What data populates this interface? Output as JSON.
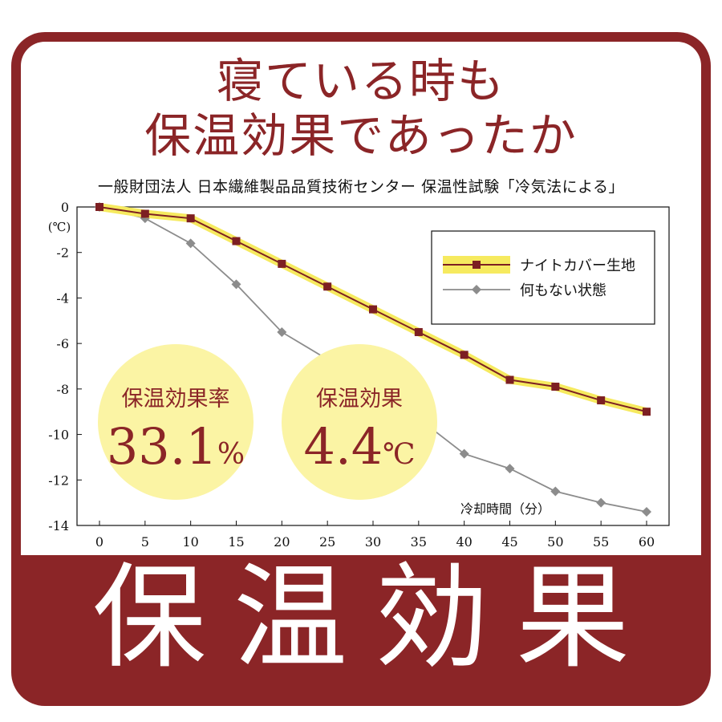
{
  "heading": {
    "line1": "寝ている時も",
    "line2": "保温効果であったか",
    "subtitle": "一般財団法人  日本繊維製品品質技術センター  保温性試験「冷気法による」"
  },
  "badges": [
    {
      "label": "保温効果率",
      "value": "33.1",
      "unit": "%"
    },
    {
      "label": "保温効果",
      "value": "4.4",
      "unit": "℃"
    }
  ],
  "footer": {
    "text": "保温効果"
  },
  "colors": {
    "brand": "#8b2527",
    "badge_fill": "#fbf4a4",
    "series1": "#7d1f22",
    "series1_glow": "#f6ea5f",
    "series2": "#8c8c8c"
  },
  "chart_data": {
    "type": "line",
    "ylabel": "(℃)",
    "xlabel": "冷却時間（分）",
    "x": [
      0,
      5,
      10,
      15,
      20,
      25,
      30,
      35,
      40,
      45,
      50,
      55,
      60
    ],
    "xlim": [
      0,
      60
    ],
    "ylim": [
      -14,
      0
    ],
    "yticks": [
      0,
      -2,
      -4,
      -6,
      -8,
      -10,
      -12,
      -14
    ],
    "grid": false,
    "legend": "top-right",
    "series": [
      {
        "name": "ナイトカバー生地",
        "marker": "square",
        "values": [
          0,
          -0.3,
          -0.5,
          -1.5,
          -2.5,
          -3.5,
          -4.5,
          -5.5,
          -6.5,
          -7.6,
          -7.9,
          -8.5,
          -9.0
        ]
      },
      {
        "name": "何もない状態",
        "marker": "diamond",
        "values": [
          0,
          -0.5,
          -1.6,
          -3.4,
          -5.5,
          -6.7,
          -7.6,
          -9.3,
          -10.85,
          -11.5,
          -12.5,
          -13.0,
          -13.4
        ]
      }
    ]
  }
}
